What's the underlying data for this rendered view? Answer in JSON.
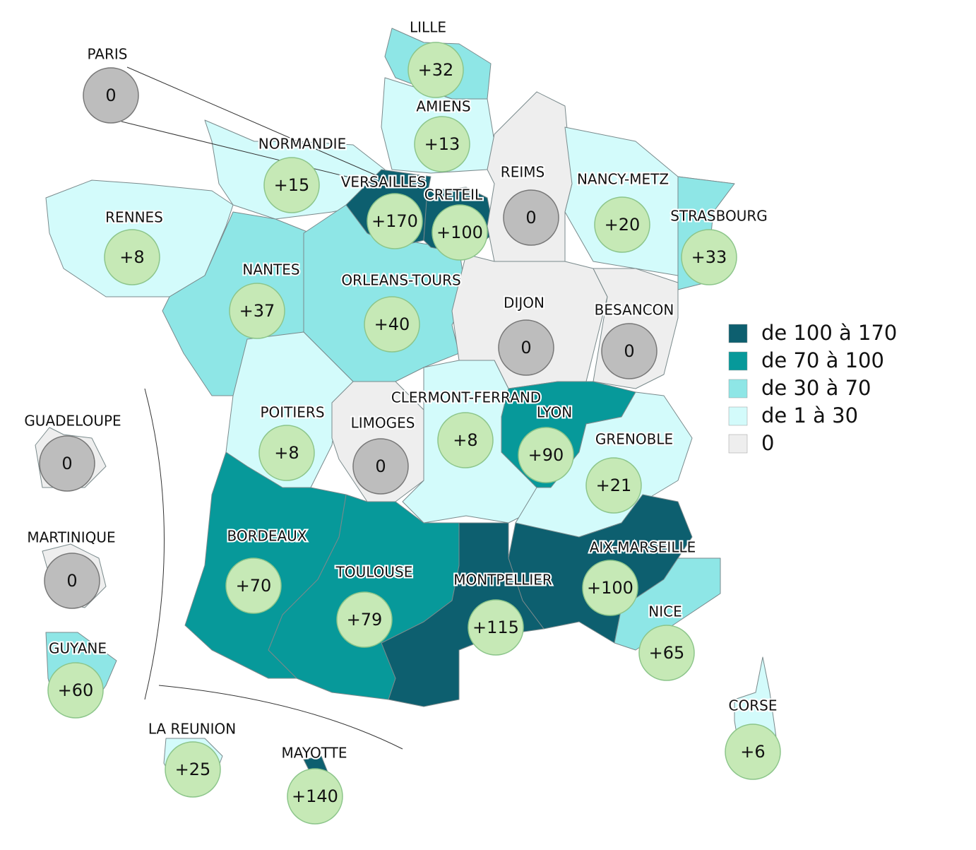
{
  "regions": [
    {
      "label": "PARIS",
      "value": "0"
    },
    {
      "label": "LILLE",
      "value": "+32"
    },
    {
      "label": "AMIENS",
      "value": "+13"
    },
    {
      "label": "NORMANDIE",
      "value": "+15"
    },
    {
      "label": "VERSAILLES",
      "value": "+170"
    },
    {
      "label": "CRETEIL",
      "value": "+100"
    },
    {
      "label": "REIMS",
      "value": "0"
    },
    {
      "label": "NANCY-METZ",
      "value": "+20"
    },
    {
      "label": "STRASBOURG",
      "value": "+33"
    },
    {
      "label": "RENNES",
      "value": "+8"
    },
    {
      "label": "NANTES",
      "value": "+37"
    },
    {
      "label": "ORLEANS-TOURS",
      "value": "+40"
    },
    {
      "label": "DIJON",
      "value": "0"
    },
    {
      "label": "BESANCON",
      "value": "0"
    },
    {
      "label": "GUADELOUPE",
      "value": "0"
    },
    {
      "label": "POITIERS",
      "value": "+8"
    },
    {
      "label": "LIMOGES",
      "value": "0"
    },
    {
      "label": "CLERMONT-FERRAND",
      "value": "+8"
    },
    {
      "label": "LYON",
      "value": "+90"
    },
    {
      "label": "GRENOBLE",
      "value": "+21"
    },
    {
      "label": "MARTINIQUE",
      "value": "0"
    },
    {
      "label": "BORDEAUX",
      "value": "+70"
    },
    {
      "label": "AIX-MARSEILLE",
      "value": "+100"
    },
    {
      "label": "TOULOUSE",
      "value": "+79"
    },
    {
      "label": "MONTPELLIER",
      "value": "+115"
    },
    {
      "label": "NICE",
      "value": "+65"
    },
    {
      "label": "GUYANE",
      "value": "+60"
    },
    {
      "label": "CORSE",
      "value": "+6"
    },
    {
      "label": "LA REUNION",
      "value": "+25"
    },
    {
      "label": "MAYOTTE",
      "value": "+140"
    }
  ],
  "legend": [
    "de 100 à 170",
    "de 70 à 100",
    "de 30 à 70",
    "de 1 à 30",
    "0"
  ]
}
